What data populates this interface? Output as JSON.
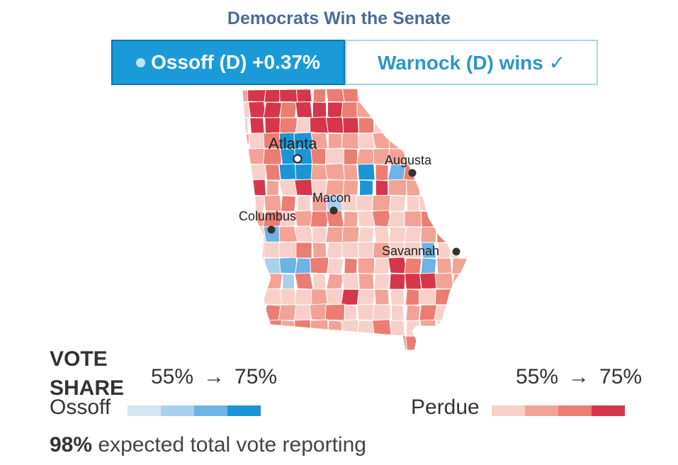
{
  "headline": "Democrats Win the Senate",
  "tabs": {
    "ossoff": {
      "label": "Ossoff (D) +0.37%",
      "selected": true
    },
    "warnock": {
      "label": "Warnock (D) wins ✓",
      "selected": false
    }
  },
  "map": {
    "cities": {
      "atlanta": "Atlanta",
      "augusta": "Augusta",
      "macon": "Macon",
      "columbus": "Columbus",
      "savannah": "Savannah"
    }
  },
  "legend": {
    "title": "VOTE SHARE",
    "ossoff": {
      "label": "Ossoff",
      "range_low": "55%",
      "range_high": "75%",
      "colors": [
        "#d6e6f5",
        "#a9d0ef",
        "#6cb3e6",
        "#1b95d6"
      ]
    },
    "perdue": {
      "label": "Perdue",
      "range_low": "55%",
      "range_high": "75%",
      "colors": [
        "#f9d0c9",
        "#f3a396",
        "#eb7d72",
        "#d6364a"
      ]
    },
    "arrow": "→"
  },
  "reporting": {
    "percent": "98%",
    "text": " expected total vote reporting"
  }
}
